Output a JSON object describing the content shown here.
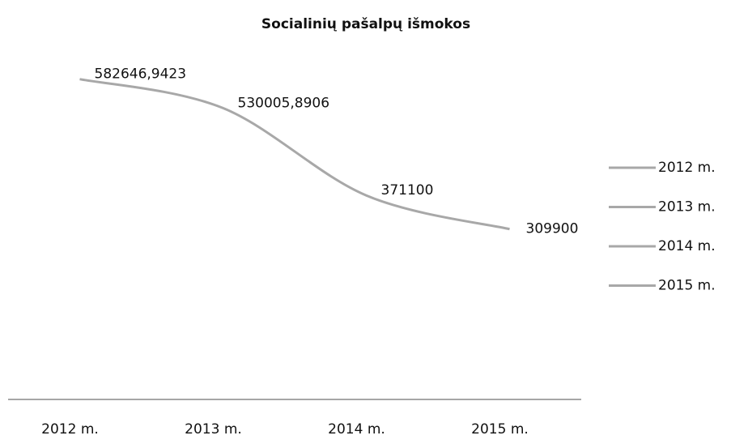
{
  "chart_data": {
    "type": "line",
    "title": "Socialinių pašalpų išmokos",
    "categories": [
      "2012 m.",
      "2013 m.",
      "2014 m.",
      "2015 m."
    ],
    "series": [
      {
        "color": "#a8a8a8",
        "values": [
          582646.9423,
          530005.8906,
          371100,
          309900
        ],
        "value_labels": [
          "582646,9423",
          "530005,8906",
          "371100",
          "309900"
        ]
      }
    ],
    "ylim": [
      0,
      650000
    ],
    "legend": "right",
    "smooth": true
  }
}
